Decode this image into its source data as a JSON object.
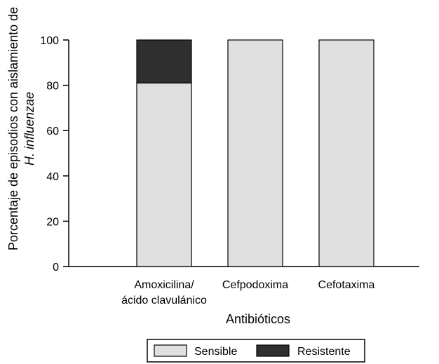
{
  "chart_data": {
    "type": "bar",
    "stacked": true,
    "categories": [
      [
        "Amoxicilina/",
        "ácido clavulánico"
      ],
      [
        "Cefpodoxima"
      ],
      [
        "Cefotaxima"
      ]
    ],
    "series": [
      {
        "name": "Sensible",
        "values": [
          81,
          100,
          100
        ],
        "color": "#e0e0e0"
      },
      {
        "name": "Resistente",
        "values": [
          19,
          0,
          0
        ],
        "color": "#2f2f2f"
      }
    ],
    "xlabel": "Antibióticos",
    "ylabel_lines": [
      {
        "text": "Porcentaje de episodios con aislamiento de",
        "italic": false
      },
      {
        "text": "H. influenzae",
        "italic": true
      }
    ],
    "yticks": [
      0,
      20,
      40,
      60,
      80,
      100
    ],
    "ylim": [
      0,
      100
    ],
    "grid": false,
    "legend_position": "bottom"
  }
}
